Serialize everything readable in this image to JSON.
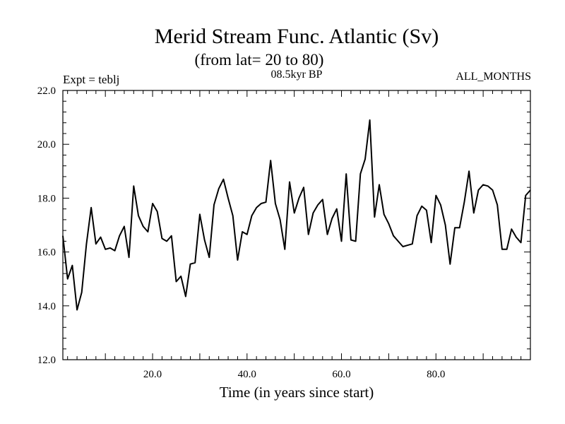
{
  "chart_data": {
    "type": "line",
    "title": "Merid Stream Func. Atlantic (Sv)",
    "subtitle": "(from lat= 20 to 80)",
    "left_label": "Expt = teblj",
    "center_label": "08.5kyr BP",
    "right_label": "ALL_MONTHS",
    "xlabel": "Time (in years since start)",
    "ylabel": "",
    "xlim": [
      1,
      100
    ],
    "ylim": [
      12.0,
      22.0
    ],
    "x_ticks": [
      20,
      40,
      60,
      80
    ],
    "x_tick_labels": [
      "20.0",
      "40.0",
      "60.0",
      "80.0"
    ],
    "y_ticks": [
      12,
      14,
      16,
      18,
      20,
      22
    ],
    "y_tick_labels": [
      "12.0",
      "14.0",
      "16.0",
      "18.0",
      "20.0",
      "22.0"
    ],
    "grid": false,
    "series": [
      {
        "name": "Merid Stream Func. Atlantic",
        "color": "#000000",
        "x": [
          1,
          2,
          3,
          4,
          5,
          6,
          7,
          8,
          9,
          10,
          11,
          12,
          13,
          14,
          15,
          16,
          17,
          18,
          19,
          20,
          21,
          22,
          23,
          24,
          25,
          26,
          27,
          28,
          29,
          30,
          31,
          32,
          33,
          34,
          35,
          36,
          37,
          38,
          39,
          40,
          41,
          42,
          43,
          44,
          45,
          46,
          47,
          48,
          49,
          50,
          51,
          52,
          53,
          54,
          55,
          56,
          57,
          58,
          59,
          60,
          61,
          62,
          63,
          64,
          65,
          66,
          67,
          68,
          69,
          70,
          71,
          72,
          73,
          74,
          75,
          76,
          77,
          78,
          79,
          80,
          81,
          82,
          83,
          84,
          85,
          86,
          87,
          88,
          89,
          90,
          91,
          92,
          93,
          94,
          95,
          96,
          97,
          98,
          99,
          100
        ],
        "values": [
          16.6,
          15.0,
          15.5,
          13.85,
          14.5,
          16.3,
          17.65,
          16.3,
          16.55,
          16.1,
          16.15,
          16.05,
          16.6,
          16.95,
          15.8,
          18.45,
          17.35,
          16.95,
          16.75,
          17.8,
          17.5,
          16.5,
          16.4,
          16.6,
          14.9,
          15.1,
          14.35,
          15.55,
          15.6,
          17.4,
          16.45,
          15.8,
          17.75,
          18.35,
          18.7,
          18.0,
          17.35,
          15.7,
          16.75,
          16.65,
          17.35,
          17.65,
          17.8,
          17.85,
          19.4,
          17.8,
          17.2,
          16.1,
          18.6,
          17.45,
          18.0,
          18.4,
          16.65,
          17.45,
          17.75,
          17.95,
          16.65,
          17.25,
          17.6,
          16.4,
          18.9,
          16.45,
          16.4,
          18.9,
          19.45,
          20.9,
          17.3,
          18.5,
          17.4,
          17.05,
          16.6,
          16.4,
          16.2,
          16.25,
          16.3,
          17.35,
          17.7,
          17.55,
          16.35,
          18.1,
          17.75,
          17.0,
          15.55,
          16.9,
          16.9,
          17.85,
          19.0,
          17.45,
          18.3,
          18.5,
          18.45,
          18.3,
          17.75,
          16.1,
          16.1,
          16.85,
          16.55,
          16.35,
          18.1,
          18.3
        ]
      }
    ]
  }
}
